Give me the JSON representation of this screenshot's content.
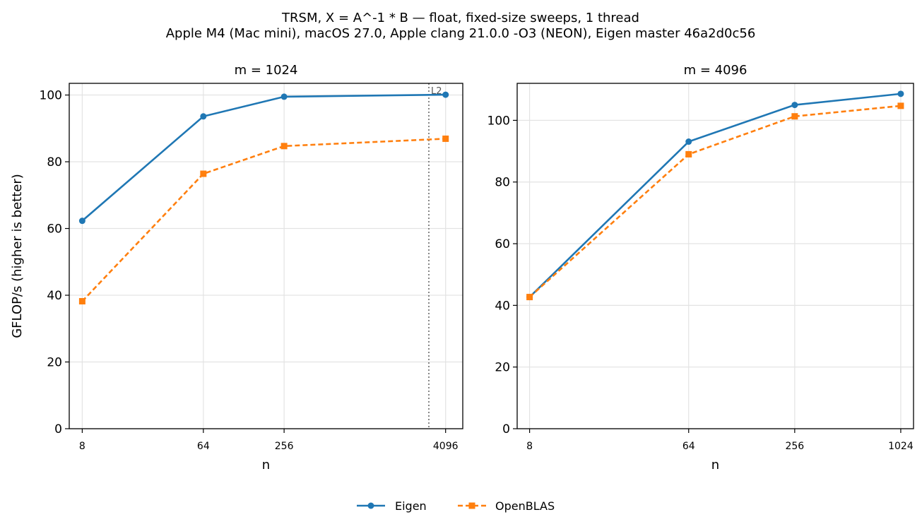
{
  "figure": {
    "title_line1": "TRSM, X = A^-1 * B — float, fixed-size sweeps, 1 thread",
    "title_line2": "Apple M4 (Mac mini), macOS 27.0, Apple clang 21.0.0 -O3 (NEON), Eigen master 46a2d0c56"
  },
  "legend": {
    "placement": "bottom-center",
    "entries": [
      {
        "label": "Eigen",
        "color": "#1f77b4",
        "marker": "circle",
        "dash": "solid"
      },
      {
        "label": "OpenBLAS",
        "color": "#ff7f0e",
        "marker": "square",
        "dash": "dashed"
      }
    ]
  },
  "chart_data": [
    {
      "type": "line",
      "title": "m = 1024",
      "xlabel": "n",
      "ylabel": "GFLOP/s (higher is better)",
      "xscale": "log2",
      "x": [
        8,
        64,
        256,
        4096
      ],
      "xticks": [
        "8",
        "64",
        "256",
        "4096"
      ],
      "xlim": [
        6.4,
        5500
      ],
      "ylim": [
        0,
        103.5
      ],
      "yticks": [
        0,
        20,
        40,
        60,
        80,
        100
      ],
      "grid": true,
      "vline": {
        "x": 3072,
        "label": "L2",
        "style": "dotted"
      },
      "series": [
        {
          "name": "Eigen",
          "values": [
            62.3,
            93.6,
            99.5,
            100.1
          ],
          "color": "#1f77b4"
        },
        {
          "name": "OpenBLAS",
          "values": [
            38.2,
            76.4,
            84.7,
            86.9
          ],
          "color": "#ff7f0e"
        }
      ]
    },
    {
      "type": "line",
      "title": "m = 4096",
      "xlabel": "n",
      "ylabel": "",
      "xscale": "log2",
      "x": [
        8,
        64,
        256,
        1024
      ],
      "xticks": [
        "8",
        "64",
        "256",
        "1024"
      ],
      "xlim": [
        6.8,
        1210
      ],
      "ylim": [
        0,
        112
      ],
      "yticks": [
        0,
        20,
        40,
        60,
        80,
        100
      ],
      "grid": true,
      "series": [
        {
          "name": "Eigen",
          "values": [
            42.7,
            93.1,
            105.0,
            108.6
          ],
          "color": "#1f77b4"
        },
        {
          "name": "OpenBLAS",
          "values": [
            42.7,
            89.0,
            101.3,
            104.7
          ],
          "color": "#ff7f0e"
        }
      ]
    }
  ]
}
